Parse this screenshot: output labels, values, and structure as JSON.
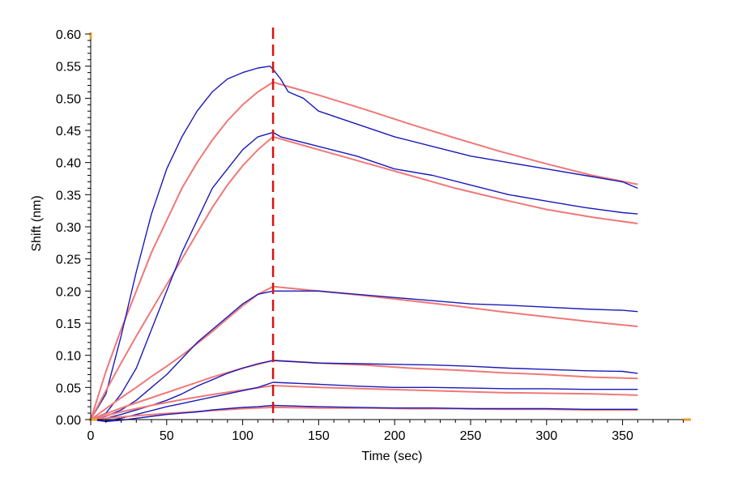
{
  "chart_data": {
    "type": "line",
    "xlabel": "Time (sec)",
    "ylabel": "Shift (nm)",
    "xlim": [
      0,
      395
    ],
    "ylim": [
      0,
      0.6
    ],
    "x_ticks": [
      0,
      50,
      100,
      150,
      200,
      250,
      300,
      350
    ],
    "y_ticks": [
      0.0,
      0.05,
      0.1,
      0.15,
      0.2,
      0.25,
      0.3,
      0.35,
      0.4,
      0.45,
      0.5,
      0.55,
      0.6
    ],
    "x_tick_labels": [
      "0",
      "50",
      "100",
      "150",
      "200",
      "250",
      "300",
      "350"
    ],
    "y_tick_labels": [
      "0.00",
      "0.05",
      "0.10",
      "0.15",
      "0.20",
      "0.25",
      "0.30",
      "0.35",
      "0.40",
      "0.45",
      "0.50",
      "0.55",
      "0.60"
    ],
    "grid": false,
    "marker_line": {
      "x": 120,
      "color": "#dd1111"
    },
    "colors": {
      "measured": "#1a1ab8",
      "fit": "#f07878",
      "axis": "#000000",
      "axis_corner": "#e8a030"
    },
    "series": [
      {
        "measured": {
          "x": [
            0,
            10,
            20,
            30,
            40,
            50,
            60,
            70,
            80,
            90,
            100,
            110,
            118,
            120,
            125,
            130,
            140,
            150,
            175,
            200,
            225,
            250,
            275,
            300,
            325,
            350,
            360
          ],
          "y": [
            0.0,
            0.04,
            0.13,
            0.23,
            0.32,
            0.39,
            0.44,
            0.48,
            0.51,
            0.53,
            0.54,
            0.547,
            0.55,
            0.545,
            0.53,
            0.51,
            0.5,
            0.48,
            0.46,
            0.44,
            0.425,
            0.41,
            0.4,
            0.39,
            0.38,
            0.37,
            0.36
          ]
        },
        "fit": {
          "x": [
            0,
            10,
            20,
            30,
            40,
            50,
            60,
            70,
            80,
            90,
            100,
            110,
            120,
            150,
            180,
            210,
            240,
            270,
            300,
            330,
            360
          ],
          "y": [
            0.0,
            0.075,
            0.14,
            0.2,
            0.26,
            0.31,
            0.36,
            0.4,
            0.435,
            0.465,
            0.49,
            0.51,
            0.525,
            0.505,
            0.483,
            0.46,
            0.438,
            0.417,
            0.398,
            0.38,
            0.366
          ]
        }
      },
      {
        "measured": {
          "x": [
            0,
            10,
            20,
            30,
            40,
            50,
            60,
            70,
            80,
            90,
            100,
            110,
            120,
            125,
            150,
            175,
            200,
            225,
            250,
            275,
            300,
            325,
            350,
            360
          ],
          "y": [
            0.0,
            0.01,
            0.04,
            0.08,
            0.14,
            0.2,
            0.26,
            0.31,
            0.36,
            0.39,
            0.42,
            0.44,
            0.447,
            0.44,
            0.425,
            0.41,
            0.39,
            0.38,
            0.365,
            0.35,
            0.34,
            0.33,
            0.322,
            0.32
          ]
        },
        "fit": {
          "x": [
            0,
            10,
            20,
            30,
            40,
            50,
            60,
            70,
            80,
            90,
            100,
            110,
            120,
            150,
            180,
            210,
            240,
            270,
            300,
            330,
            360
          ],
          "y": [
            0.0,
            0.045,
            0.088,
            0.13,
            0.17,
            0.21,
            0.25,
            0.29,
            0.33,
            0.365,
            0.395,
            0.42,
            0.44,
            0.42,
            0.4,
            0.38,
            0.36,
            0.343,
            0.327,
            0.315,
            0.305
          ]
        }
      },
      {
        "measured": {
          "x": [
            0,
            10,
            20,
            30,
            40,
            50,
            60,
            70,
            80,
            90,
            100,
            110,
            120,
            130,
            150,
            175,
            200,
            225,
            250,
            275,
            300,
            325,
            350,
            360
          ],
          "y": [
            0.0,
            0.005,
            0.015,
            0.03,
            0.05,
            0.07,
            0.095,
            0.12,
            0.14,
            0.16,
            0.18,
            0.195,
            0.2,
            0.2,
            0.2,
            0.195,
            0.19,
            0.185,
            0.18,
            0.178,
            0.175,
            0.172,
            0.17,
            0.168
          ]
        },
        "fit": {
          "x": [
            0,
            10,
            20,
            30,
            40,
            50,
            60,
            70,
            80,
            90,
            100,
            110,
            120,
            150,
            180,
            210,
            240,
            270,
            300,
            330,
            360
          ],
          "y": [
            0.0,
            0.017,
            0.034,
            0.05,
            0.067,
            0.083,
            0.1,
            0.118,
            0.137,
            0.157,
            0.177,
            0.195,
            0.207,
            0.2,
            0.193,
            0.185,
            0.177,
            0.168,
            0.16,
            0.152,
            0.145
          ]
        }
      },
      {
        "measured": {
          "x": [
            0,
            10,
            20,
            30,
            40,
            50,
            60,
            70,
            80,
            90,
            100,
            110,
            120,
            150,
            175,
            200,
            225,
            250,
            275,
            300,
            325,
            350,
            360
          ],
          "y": [
            0.0,
            0.002,
            0.008,
            0.015,
            0.022,
            0.03,
            0.04,
            0.052,
            0.062,
            0.072,
            0.08,
            0.087,
            0.092,
            0.088,
            0.087,
            0.086,
            0.085,
            0.083,
            0.08,
            0.078,
            0.076,
            0.075,
            0.072
          ]
        },
        "fit": {
          "x": [
            0,
            20,
            40,
            60,
            80,
            100,
            120,
            150,
            180,
            210,
            240,
            270,
            300,
            330,
            360
          ],
          "y": [
            0.0,
            0.018,
            0.034,
            0.05,
            0.066,
            0.08,
            0.092,
            0.088,
            0.085,
            0.08,
            0.077,
            0.073,
            0.07,
            0.066,
            0.064
          ]
        }
      },
      {
        "measured": {
          "x": [
            0,
            10,
            20,
            30,
            40,
            50,
            60,
            70,
            80,
            90,
            100,
            110,
            120,
            150,
            175,
            200,
            225,
            250,
            275,
            300,
            325,
            350,
            360
          ],
          "y": [
            0.0,
            -0.002,
            0.002,
            0.008,
            0.014,
            0.02,
            0.025,
            0.03,
            0.035,
            0.04,
            0.045,
            0.05,
            0.058,
            0.055,
            0.052,
            0.05,
            0.05,
            0.049,
            0.048,
            0.048,
            0.047,
            0.047,
            0.047
          ]
        },
        "fit": {
          "x": [
            0,
            20,
            40,
            60,
            80,
            100,
            120,
            150,
            180,
            210,
            240,
            270,
            300,
            330,
            360
          ],
          "y": [
            0.0,
            0.012,
            0.022,
            0.031,
            0.039,
            0.046,
            0.053,
            0.05,
            0.048,
            0.046,
            0.044,
            0.042,
            0.041,
            0.04,
            0.038
          ]
        }
      },
      {
        "measured": {
          "x": [
            0,
            10,
            20,
            30,
            40,
            50,
            60,
            70,
            80,
            90,
            100,
            110,
            120,
            150,
            175,
            200,
            225,
            250,
            275,
            300,
            325,
            350,
            360
          ],
          "y": [
            0.0,
            -0.003,
            -0.001,
            0.002,
            0.005,
            0.008,
            0.01,
            0.012,
            0.015,
            0.017,
            0.019,
            0.02,
            0.022,
            0.02,
            0.019,
            0.018,
            0.018,
            0.017,
            0.017,
            0.017,
            0.016,
            0.016,
            0.016
          ]
        },
        "fit": {
          "x": [
            0,
            20,
            40,
            60,
            80,
            100,
            120,
            150,
            180,
            210,
            240,
            270,
            300,
            330,
            360
          ],
          "y": [
            0.0,
            0.004,
            0.008,
            0.011,
            0.014,
            0.017,
            0.019,
            0.018,
            0.018,
            0.017,
            0.017,
            0.016,
            0.016,
            0.015,
            0.015
          ]
        }
      }
    ]
  }
}
